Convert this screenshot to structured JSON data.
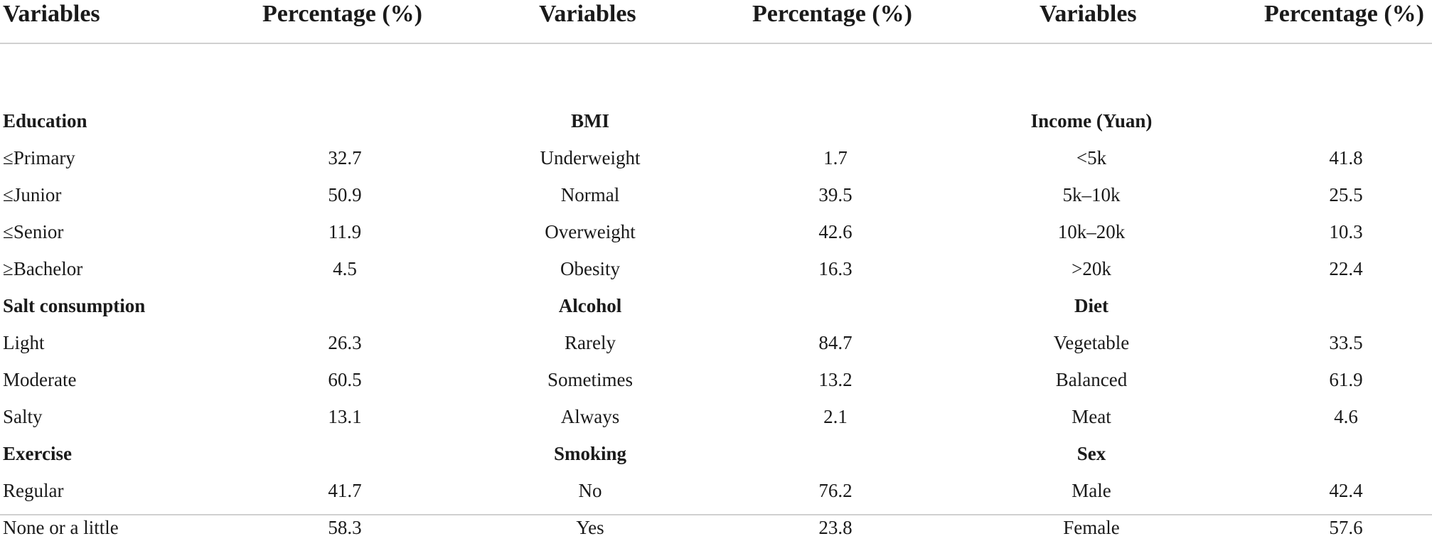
{
  "header": [
    "Variables",
    "Percentage (%)",
    "Variables",
    "Percentage (%)",
    "Variables",
    "Percentage (%)"
  ],
  "rows": [
    {
      "type": "cat",
      "cells": [
        "Education",
        "",
        "BMI",
        "",
        "Income (Yuan)",
        ""
      ]
    },
    {
      "type": "val",
      "cells": [
        "≤Primary",
        "32.7",
        "Underweight",
        "1.7",
        "<5k",
        "41.8"
      ]
    },
    {
      "type": "val",
      "cells": [
        "≤Junior",
        "50.9",
        "Normal",
        "39.5",
        "5k–10k",
        "25.5"
      ]
    },
    {
      "type": "val",
      "cells": [
        "≤Senior",
        "11.9",
        "Overweight",
        "42.6",
        "10k–20k",
        "10.3"
      ]
    },
    {
      "type": "val",
      "cells": [
        "≥Bachelor",
        "4.5",
        "Obesity",
        "16.3",
        ">20k",
        "22.4"
      ]
    },
    {
      "type": "cat",
      "cells": [
        "Salt consumption",
        "",
        "Alcohol",
        "",
        "Diet",
        ""
      ]
    },
    {
      "type": "val",
      "cells": [
        "Light",
        "26.3",
        "Rarely",
        "84.7",
        "Vegetable",
        "33.5"
      ]
    },
    {
      "type": "val",
      "cells": [
        "Moderate",
        "60.5",
        "Sometimes",
        "13.2",
        "Balanced",
        "61.9"
      ]
    },
    {
      "type": "val",
      "cells": [
        "Salty",
        "13.1",
        "Always",
        "2.1",
        "Meat",
        "4.6"
      ]
    },
    {
      "type": "cat",
      "cells": [
        "Exercise",
        "",
        "Smoking",
        "",
        "Sex",
        ""
      ]
    },
    {
      "type": "val",
      "cells": [
        "Regular",
        "41.7",
        "No",
        "76.2",
        "Male",
        "42.4"
      ]
    },
    {
      "type": "val",
      "cells": [
        "None or a little",
        "58.3",
        "Yes",
        "23.8",
        "Female",
        "57.6"
      ]
    }
  ]
}
